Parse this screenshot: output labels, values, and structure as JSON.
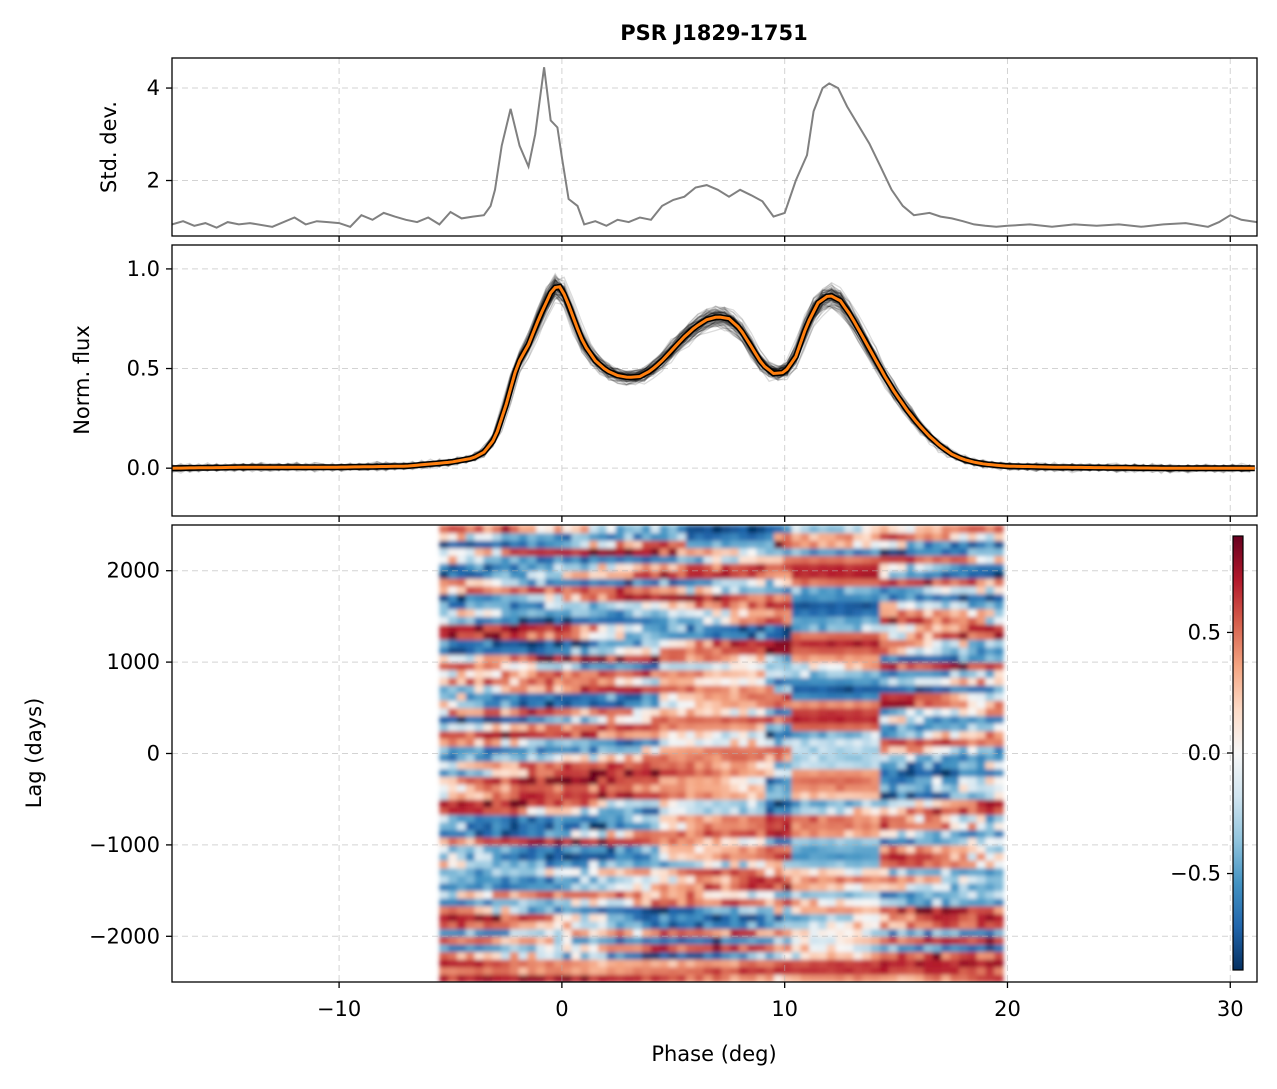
{
  "figure": {
    "title": "PSR J1829-1751",
    "xlabel": "Phase (deg)"
  },
  "chart_data": [
    {
      "type": "line",
      "panel": "std",
      "ylabel": "Std. dev.",
      "xlim": [
        -17.5,
        31.2
      ],
      "ylim": [
        0.8,
        4.65
      ],
      "xticks": [
        -10,
        0,
        10,
        20,
        30
      ],
      "yticks": [
        2,
        4
      ],
      "ytick_labels": [
        "2",
        "4"
      ],
      "grid": true,
      "color": "#808080",
      "x": [
        -17.5,
        -17.0,
        -16.5,
        -16.0,
        -15.5,
        -15.0,
        -14.5,
        -14.0,
        -13.0,
        -12.0,
        -11.5,
        -11.0,
        -10.5,
        -10.0,
        -9.5,
        -9.0,
        -8.5,
        -8.0,
        -7.5,
        -7.0,
        -6.5,
        -6.0,
        -5.5,
        -5.0,
        -4.5,
        -4.0,
        -3.5,
        -3.2,
        -3.0,
        -2.7,
        -2.3,
        -1.9,
        -1.5,
        -1.2,
        -0.8,
        -0.5,
        -0.2,
        0.0,
        0.3,
        0.7,
        1.0,
        1.5,
        2.0,
        2.5,
        3.0,
        3.5,
        4.0,
        4.5,
        5.0,
        5.5,
        6.0,
        6.5,
        7.0,
        7.5,
        8.0,
        8.5,
        9.0,
        9.5,
        10.0,
        10.5,
        11.0,
        11.3,
        11.7,
        12.0,
        12.4,
        12.8,
        13.3,
        13.8,
        14.3,
        14.8,
        15.3,
        15.8,
        16.5,
        17.0,
        17.5,
        18.0,
        18.5,
        19.0,
        19.5,
        20.0,
        21.0,
        22.0,
        23.0,
        24.0,
        25.0,
        26.0,
        27.0,
        28.0,
        29.0,
        29.5,
        30.0,
        30.5,
        31.2
      ],
      "y": [
        1.05,
        1.12,
        1.02,
        1.08,
        0.98,
        1.1,
        1.05,
        1.08,
        1.0,
        1.2,
        1.05,
        1.12,
        1.1,
        1.08,
        1.0,
        1.25,
        1.15,
        1.3,
        1.22,
        1.15,
        1.1,
        1.2,
        1.05,
        1.32,
        1.18,
        1.22,
        1.25,
        1.45,
        1.8,
        2.75,
        3.55,
        2.75,
        2.3,
        3.0,
        4.45,
        3.3,
        3.15,
        2.5,
        1.6,
        1.45,
        1.05,
        1.12,
        1.02,
        1.15,
        1.1,
        1.2,
        1.15,
        1.45,
        1.58,
        1.65,
        1.85,
        1.9,
        1.8,
        1.65,
        1.8,
        1.68,
        1.55,
        1.22,
        1.3,
        2.0,
        2.55,
        3.5,
        4.0,
        4.1,
        4.0,
        3.6,
        3.2,
        2.8,
        2.3,
        1.8,
        1.45,
        1.25,
        1.3,
        1.22,
        1.18,
        1.12,
        1.05,
        1.02,
        1.0,
        1.02,
        1.05,
        1.0,
        1.05,
        1.02,
        1.05,
        1.0,
        1.05,
        1.08,
        1.0,
        1.1,
        1.25,
        1.15,
        1.1
      ]
    },
    {
      "type": "line",
      "panel": "flux",
      "ylabel": "Norm. flux",
      "xlim": [
        -17.5,
        31.2
      ],
      "ylim": [
        -0.24,
        1.12
      ],
      "xticks": [
        -10,
        0,
        10,
        20,
        30
      ],
      "yticks": [
        0.0,
        0.5,
        1.0
      ],
      "ytick_labels": [
        "0.0",
        "0.5",
        "1.0"
      ],
      "grid": true,
      "series": [
        {
          "role": "mean profile",
          "color": "#ff7f0e",
          "x": [
            -17.5,
            -14.0,
            -10.0,
            -7.0,
            -5.0,
            -4.0,
            -3.5,
            -3.0,
            -2.5,
            -2.0,
            -1.5,
            -1.0,
            -0.5,
            -0.2,
            0.0,
            0.3,
            0.7,
            1.0,
            1.5,
            2.0,
            2.5,
            3.0,
            3.5,
            4.0,
            4.5,
            5.0,
            5.5,
            6.0,
            6.5,
            7.0,
            7.5,
            8.0,
            8.5,
            9.0,
            9.5,
            10.0,
            10.5,
            11.0,
            11.5,
            12.0,
            12.5,
            13.0,
            13.5,
            14.0,
            14.5,
            15.0,
            15.5,
            16.0,
            16.5,
            17.0,
            17.5,
            18.0,
            18.5,
            19.0,
            19.5,
            20.0,
            21.0,
            22.0,
            24.0,
            27.0,
            31.2
          ],
          "y": [
            0.0,
            0.005,
            0.005,
            0.01,
            0.03,
            0.05,
            0.08,
            0.15,
            0.32,
            0.52,
            0.62,
            0.76,
            0.88,
            0.92,
            0.9,
            0.82,
            0.7,
            0.62,
            0.54,
            0.49,
            0.465,
            0.455,
            0.46,
            0.49,
            0.54,
            0.6,
            0.66,
            0.71,
            0.745,
            0.76,
            0.75,
            0.7,
            0.61,
            0.52,
            0.475,
            0.48,
            0.56,
            0.72,
            0.83,
            0.87,
            0.84,
            0.76,
            0.66,
            0.56,
            0.46,
            0.37,
            0.29,
            0.22,
            0.16,
            0.11,
            0.07,
            0.045,
            0.03,
            0.02,
            0.015,
            0.01,
            0.008,
            0.005,
            0.003,
            0.0,
            0.0
          ]
        }
      ],
      "individual_profiles": {
        "role": "individual profiles",
        "color": "#000000",
        "count": 80
      }
    },
    {
      "type": "heatmap",
      "panel": "correlation",
      "ylabel": "Lag (days)",
      "xlabel": "Phase (deg)",
      "xlim": [
        -17.5,
        31.2
      ],
      "ylim": [
        -2500,
        2500
      ],
      "data_x_range": [
        -5.5,
        19.8
      ],
      "data_y_range": [
        -2500,
        2500
      ],
      "xticks": [
        -10,
        0,
        10,
        20,
        30
      ],
      "xtick_labels": [
        "−10",
        "0",
        "10",
        "20",
        "30"
      ],
      "yticks": [
        -2000,
        -1000,
        0,
        1000,
        2000
      ],
      "ytick_labels": [
        "−2000",
        "−1000",
        "0",
        "1000",
        "2000"
      ],
      "grid": true,
      "colormap": "RdBu_r",
      "colorbar": {
        "range": [
          -0.9,
          0.9
        ],
        "ticks": [
          -0.5,
          0.0,
          0.5
        ],
        "tick_labels": [
          "−0.5",
          "0.0",
          "0.5"
        ],
        "placement": "inside right"
      },
      "band_rows_at_phase_11_to_14": [
        {
          "lag": 2000,
          "value": 0.75
        },
        {
          "lag": 1600,
          "value": -0.8
        },
        {
          "lag": 1200,
          "value": 0.65
        },
        {
          "lag": 700,
          "value": -0.75
        },
        {
          "lag": 400,
          "value": 0.7
        },
        {
          "lag": 0,
          "value": -0.2
        },
        {
          "lag": -300,
          "value": 0.4
        },
        {
          "lag": -1100,
          "value": -0.45
        }
      ]
    }
  ],
  "colors": {
    "std_line": "#808080",
    "mean_profile": "#ff7f0e",
    "individual": "#000000",
    "grid": "#b0b0b0"
  }
}
